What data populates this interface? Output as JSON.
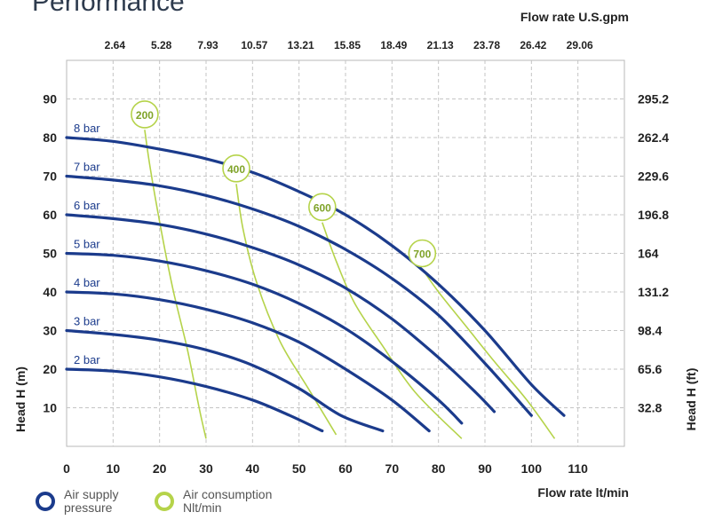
{
  "page": {
    "title": "Performance"
  },
  "legend": {
    "air_supply": {
      "line1": "Air supply",
      "line2": "pressure",
      "color": "#1b3b8c"
    },
    "air_consumption": {
      "line1": "Air consumption",
      "line2": "Nlt/min",
      "color": "#b5d34a"
    }
  },
  "chart_data": {
    "type": "line",
    "title": "Performance",
    "xlabel": "Flow rate  lt/min",
    "ylabel": "Head H (m)",
    "ylabel_right": "Head H (ft)",
    "xlabel_top": "Flow rate U.S.gpm",
    "xlim": [
      0,
      120
    ],
    "ylim": [
      0,
      100
    ],
    "x_ticks": [
      0,
      10,
      20,
      30,
      40,
      50,
      60,
      70,
      80,
      90,
      100,
      110
    ],
    "y_ticks": [
      10,
      20,
      30,
      40,
      50,
      60,
      70,
      80,
      90
    ],
    "top_ticks": [
      {
        "x": 10,
        "label": "2.64"
      },
      {
        "x": 20,
        "label": "5.28"
      },
      {
        "x": 30,
        "label": "7.93"
      },
      {
        "x": 40,
        "label": "10.57"
      },
      {
        "x": 50,
        "label": "13.21"
      },
      {
        "x": 60,
        "label": "15.85"
      },
      {
        "x": 70,
        "label": "18.49"
      },
      {
        "x": 80,
        "label": "21.13"
      },
      {
        "x": 90,
        "label": "23.78"
      },
      {
        "x": 100,
        "label": "26.42"
      },
      {
        "x": 110,
        "label": "29.06"
      }
    ],
    "right_ticks": [
      {
        "y": 10,
        "label": "32.8"
      },
      {
        "y": 20,
        "label": "65.6"
      },
      {
        "y": 30,
        "label": "98.4"
      },
      {
        "y": 40,
        "label": "131.2"
      },
      {
        "y": 50,
        "label": "164"
      },
      {
        "y": 60,
        "label": "196.8"
      },
      {
        "y": 70,
        "label": "229.6"
      },
      {
        "y": 80,
        "label": "262.4"
      },
      {
        "y": 90,
        "label": "295.2"
      }
    ],
    "grid": true,
    "pressure_series": [
      {
        "name": "2 bar",
        "color": "#1b3b8c",
        "points": [
          [
            0,
            20
          ],
          [
            10,
            19.5
          ],
          [
            20,
            18
          ],
          [
            30,
            15.5
          ],
          [
            40,
            12
          ],
          [
            48,
            8
          ],
          [
            55,
            4
          ]
        ]
      },
      {
        "name": "3 bar",
        "color": "#1b3b8c",
        "points": [
          [
            0,
            30
          ],
          [
            10,
            29
          ],
          [
            20,
            27.5
          ],
          [
            30,
            25
          ],
          [
            40,
            21
          ],
          [
            50,
            15
          ],
          [
            59,
            8
          ],
          [
            68,
            4
          ]
        ]
      },
      {
        "name": "4 bar",
        "color": "#1b3b8c",
        "points": [
          [
            0,
            40
          ],
          [
            10,
            39.5
          ],
          [
            20,
            38
          ],
          [
            30,
            35.5
          ],
          [
            40,
            32
          ],
          [
            50,
            27
          ],
          [
            60,
            20
          ],
          [
            70,
            12
          ],
          [
            78,
            4
          ]
        ]
      },
      {
        "name": "5 bar",
        "color": "#1b3b8c",
        "points": [
          [
            0,
            50
          ],
          [
            10,
            49.5
          ],
          [
            20,
            48
          ],
          [
            30,
            45.5
          ],
          [
            40,
            42
          ],
          [
            50,
            37
          ],
          [
            60,
            30.5
          ],
          [
            70,
            22
          ],
          [
            80,
            12
          ],
          [
            85,
            6
          ]
        ]
      },
      {
        "name": "6 bar",
        "color": "#1b3b8c",
        "points": [
          [
            0,
            60
          ],
          [
            10,
            59
          ],
          [
            20,
            57.5
          ],
          [
            30,
            55
          ],
          [
            40,
            51.5
          ],
          [
            50,
            47
          ],
          [
            60,
            41
          ],
          [
            70,
            33
          ],
          [
            80,
            23
          ],
          [
            88,
            14
          ],
          [
            92,
            9
          ]
        ]
      },
      {
        "name": "7 bar",
        "color": "#1b3b8c",
        "points": [
          [
            0,
            70
          ],
          [
            10,
            69
          ],
          [
            20,
            67.5
          ],
          [
            30,
            65
          ],
          [
            40,
            61.5
          ],
          [
            50,
            57
          ],
          [
            60,
            51
          ],
          [
            70,
            43.5
          ],
          [
            80,
            34
          ],
          [
            90,
            21.5
          ],
          [
            100,
            8
          ]
        ]
      },
      {
        "name": "8 bar",
        "color": "#1b3b8c",
        "points": [
          [
            0,
            80
          ],
          [
            10,
            79
          ],
          [
            20,
            77
          ],
          [
            30,
            74.5
          ],
          [
            40,
            71
          ],
          [
            50,
            66
          ],
          [
            60,
            60
          ],
          [
            70,
            52
          ],
          [
            80,
            42
          ],
          [
            90,
            30
          ],
          [
            100,
            16
          ],
          [
            107,
            8
          ]
        ]
      }
    ],
    "consumption_series": [
      {
        "name": "200",
        "color": "#b5d34a",
        "label_point": [
          16.8,
          86
        ],
        "points": [
          [
            16.8,
            82
          ],
          [
            18,
            72
          ],
          [
            20.5,
            55
          ],
          [
            23,
            40
          ],
          [
            26,
            25
          ],
          [
            28.5,
            10
          ],
          [
            30,
            2
          ]
        ]
      },
      {
        "name": "400",
        "color": "#b5d34a",
        "label_point": [
          36.5,
          72
        ],
        "points": [
          [
            36.5,
            68
          ],
          [
            38,
            56
          ],
          [
            41,
            42
          ],
          [
            46,
            27
          ],
          [
            52,
            15
          ],
          [
            58,
            3
          ]
        ]
      },
      {
        "name": "600",
        "color": "#b5d34a",
        "label_point": [
          55,
          62
        ],
        "points": [
          [
            55,
            58
          ],
          [
            58,
            48
          ],
          [
            62,
            37
          ],
          [
            68,
            26
          ],
          [
            75,
            14
          ],
          [
            85,
            2
          ]
        ]
      },
      {
        "name": "700",
        "color": "#b5d34a",
        "label_point": [
          76.5,
          50
        ],
        "points": [
          [
            76.5,
            46
          ],
          [
            80,
            40
          ],
          [
            86,
            31
          ],
          [
            92,
            22
          ],
          [
            99,
            12
          ],
          [
            105,
            2
          ]
        ]
      }
    ]
  }
}
